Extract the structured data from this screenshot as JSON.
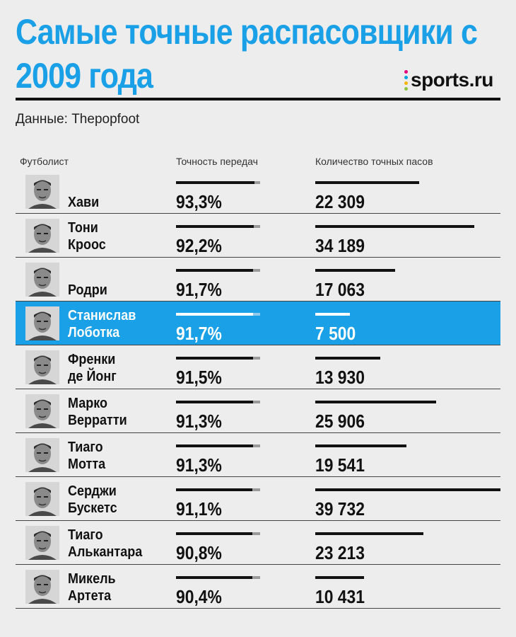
{
  "title": "Самые точные распасовщики с 2009 года",
  "logo_text": "sports.ru",
  "logo_dot_colors": [
    "#e6007e",
    "#00a3e0",
    "#f7b500",
    "#8cc63f"
  ],
  "source": "Данные: Thepopfoot",
  "columns": {
    "player": "Футболист",
    "accuracy": "Точность передач",
    "passes": "Количество точных пасов"
  },
  "colors": {
    "accent": "#1aa0e6",
    "bar": "#111111",
    "track": "#9a9a9a"
  },
  "chart_data": {
    "type": "table",
    "title": "Самые точные распасовщики с 2009 года",
    "columns": [
      "Футболист",
      "Точность передач",
      "Количество точных пасов"
    ],
    "accuracy_axis_max": 100,
    "passes_axis_max": 39732,
    "highlighted_row": 3,
    "rows": [
      {
        "name": "Хави",
        "accuracy": 93.3,
        "accuracy_label": "93,3%",
        "passes": 22309,
        "passes_label": "22 309"
      },
      {
        "name": "Тони Кроос",
        "accuracy": 92.2,
        "accuracy_label": "92,2%",
        "passes": 34189,
        "passes_label": "34 189"
      },
      {
        "name": "Родри",
        "accuracy": 91.7,
        "accuracy_label": "91,7%",
        "passes": 17063,
        "passes_label": "17 063"
      },
      {
        "name": "Станислав Лоботка",
        "accuracy": 91.7,
        "accuracy_label": "91,7%",
        "passes": 7500,
        "passes_label": "7 500"
      },
      {
        "name": "Френки де Йонг",
        "accuracy": 91.5,
        "accuracy_label": "91,5%",
        "passes": 13930,
        "passes_label": "13 930"
      },
      {
        "name": "Марко Верратти",
        "accuracy": 91.3,
        "accuracy_label": "91,3%",
        "passes": 25906,
        "passes_label": "25 906"
      },
      {
        "name": "Тиаго Мотта",
        "accuracy": 91.3,
        "accuracy_label": "91,3%",
        "passes": 19541,
        "passes_label": "19 541"
      },
      {
        "name": "Серджи Бускетс",
        "accuracy": 91.1,
        "accuracy_label": "91,1%",
        "passes": 39732,
        "passes_label": "39 732"
      },
      {
        "name": "Тиаго Алькантара",
        "accuracy": 90.8,
        "accuracy_label": "90,8%",
        "passes": 23213,
        "passes_label": "23 213"
      },
      {
        "name": "Микель Артета",
        "accuracy": 90.4,
        "accuracy_label": "90,4%",
        "passes": 10431,
        "passes_label": "10 431"
      }
    ]
  }
}
